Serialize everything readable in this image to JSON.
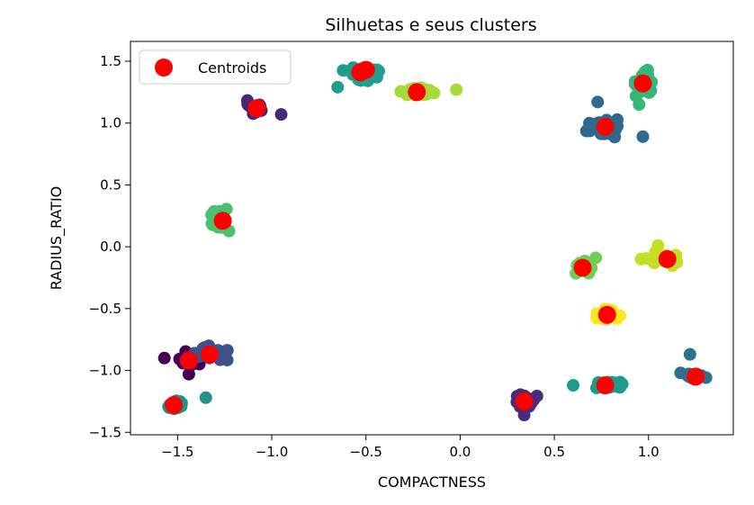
{
  "chart_data": {
    "type": "scatter",
    "title": "Silhuetas e seus clusters",
    "xlabel": "COMPACTNESS",
    "ylabel": "RADIUS_RATIO",
    "xlim": [
      -1.75,
      1.45
    ],
    "ylim": [
      -1.52,
      1.66
    ],
    "x_ticks": [
      -1.5,
      -1.0,
      -0.5,
      0.0,
      0.5,
      1.0
    ],
    "x_tick_labels": [
      "−1.5",
      "−1.0",
      "−0.5",
      "0.0",
      "0.5",
      "1.0"
    ],
    "y_ticks": [
      -1.5,
      -1.0,
      -0.5,
      0.0,
      0.5,
      1.0,
      1.5
    ],
    "y_tick_labels": [
      "−1.5",
      "−1.0",
      "−0.5",
      "0.0",
      "0.5",
      "1.0",
      "1.5"
    ],
    "grid": false,
    "legend": {
      "position": "top-left",
      "entries": [
        "Centroids"
      ]
    },
    "clusters": [
      {
        "color": "#482878",
        "center": [
          -1.09,
          1.12
        ],
        "spread": [
          0.05,
          0.05
        ],
        "n": 20,
        "extra": [
          [
            -0.95,
            1.07
          ]
        ]
      },
      {
        "color": "#1f9e89",
        "center": [
          -0.52,
          1.4
        ],
        "spread": [
          0.07,
          0.05
        ],
        "n": 32,
        "extra": [
          [
            -0.65,
            1.29
          ],
          [
            -0.44,
            1.43
          ]
        ]
      },
      {
        "color": "#a5db36",
        "center": [
          -0.23,
          1.25
        ],
        "spread": [
          0.08,
          0.03
        ],
        "n": 28,
        "extra": [
          [
            -0.02,
            1.27
          ]
        ]
      },
      {
        "color": "#31688e",
        "center": [
          0.77,
          0.97
        ],
        "spread": [
          0.07,
          0.06
        ],
        "n": 32,
        "extra": [
          [
            0.97,
            0.89
          ],
          [
            0.73,
            1.17
          ]
        ]
      },
      {
        "color": "#35b779",
        "center": [
          0.97,
          1.32
        ],
        "spread": [
          0.06,
          0.08
        ],
        "n": 30,
        "extra": [
          [
            0.95,
            1.15
          ]
        ]
      },
      {
        "color": "#4ac16d",
        "center": [
          -1.27,
          0.21
        ],
        "spread": [
          0.05,
          0.07
        ],
        "n": 26,
        "extra": []
      },
      {
        "color": "#6ece58",
        "center": [
          0.65,
          -0.17
        ],
        "spread": [
          0.04,
          0.05
        ],
        "n": 18,
        "extra": [
          [
            0.72,
            -0.09
          ]
        ]
      },
      {
        "color": "#c2df23",
        "center": [
          1.1,
          -0.1
        ],
        "spread": [
          0.08,
          0.04
        ],
        "n": 22,
        "extra": [
          [
            0.96,
            -0.1
          ],
          [
            1.05,
            0.01
          ]
        ]
      },
      {
        "color": "#fde725",
        "center": [
          0.78,
          -0.55
        ],
        "spread": [
          0.07,
          0.04
        ],
        "n": 24,
        "extra": []
      },
      {
        "color": "#440154",
        "center": [
          -1.44,
          -0.91
        ],
        "spread": [
          0.06,
          0.05
        ],
        "n": 18,
        "extra": [
          [
            -1.57,
            -0.9
          ],
          [
            -1.44,
            -1.03
          ]
        ]
      },
      {
        "color": "#3b528b",
        "center": [
          -1.33,
          -0.86
        ],
        "spread": [
          0.08,
          0.05
        ],
        "n": 30,
        "extra": []
      },
      {
        "color": "#21918c",
        "center": [
          -1.52,
          -1.28
        ],
        "spread": [
          0.04,
          0.03
        ],
        "n": 20,
        "extra": [
          [
            -1.35,
            -1.22
          ]
        ]
      },
      {
        "color": "#472d7b",
        "center": [
          0.34,
          -1.25
        ],
        "spread": [
          0.05,
          0.05
        ],
        "n": 22,
        "extra": [
          [
            0.34,
            -1.36
          ]
        ]
      },
      {
        "color": "#1f9a8a",
        "center": [
          0.78,
          -1.12
        ],
        "spread": [
          0.08,
          0.03
        ],
        "n": 32,
        "extra": [
          [
            0.6,
            -1.12
          ]
        ]
      },
      {
        "color": "#2c728e",
        "center": [
          1.25,
          -1.05
        ],
        "spread": [
          0.04,
          0.03
        ],
        "n": 14,
        "extra": [
          [
            1.22,
            -0.87
          ],
          [
            1.17,
            -1.02
          ]
        ]
      }
    ],
    "centroids": {
      "label": "Centroids",
      "color": "#ff0000",
      "x": [
        -1.08,
        -0.5,
        -0.23,
        0.77,
        0.97,
        -1.26,
        0.65,
        1.1,
        0.78,
        -1.44,
        -1.33,
        -1.52,
        0.34,
        0.77,
        1.25,
        -0.53
      ],
      "y": [
        1.12,
        1.43,
        1.25,
        0.97,
        1.32,
        0.21,
        -0.17,
        -0.1,
        -0.55,
        -0.92,
        -0.87,
        -1.28,
        -1.25,
        -1.12,
        -1.05,
        1.41
      ]
    }
  }
}
